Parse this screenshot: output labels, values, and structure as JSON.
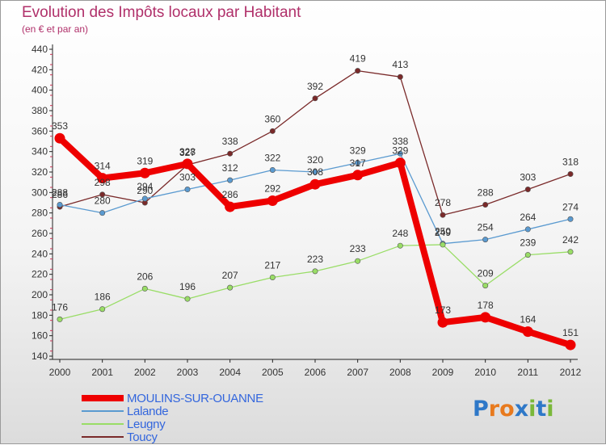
{
  "title": "Evolution des Impôts locaux par Habitant",
  "subtitle": "(en € et par an)",
  "logo": {
    "letters": [
      "P",
      "r",
      "o",
      "x",
      "i",
      "t",
      "i"
    ],
    "colors": [
      "#2e78c8",
      "#e87a1e",
      "#e87a1e",
      "#2e78c8",
      "#7ab83a",
      "#2e78c8",
      "#7ab83a"
    ]
  },
  "chart_data": {
    "type": "line",
    "title": "Evolution des Impôts locaux par Habitant",
    "ylabel": "(en € et par an)",
    "xlabel": "",
    "x": [
      "2000",
      "2001",
      "2002",
      "2003",
      "2004",
      "2005",
      "2006",
      "2007",
      "2008",
      "2009",
      "2010",
      "2011",
      "2012"
    ],
    "ylim": [
      140,
      440
    ],
    "yticks": [
      140,
      160,
      180,
      200,
      220,
      240,
      260,
      280,
      300,
      320,
      340,
      360,
      380,
      400,
      420,
      440
    ],
    "grid": false,
    "legend": "bottom-left",
    "series": [
      {
        "name": "Toucy",
        "color": "#7a2a2a",
        "width": "thin",
        "values": [
          286,
          298,
          290,
          327,
          338,
          360,
          392,
          419,
          413,
          278,
          288,
          303,
          318
        ]
      },
      {
        "name": "Lalande",
        "color": "#5a9ad0",
        "width": "thin",
        "values": [
          288,
          280,
          294,
          303,
          312,
          322,
          320,
          329,
          338,
          250,
          254,
          264,
          274
        ]
      },
      {
        "name": "Leugny",
        "color": "#99dd66",
        "width": "thin",
        "values": [
          176,
          186,
          206,
          196,
          207,
          217,
          223,
          233,
          248,
          249,
          209,
          239,
          242
        ]
      },
      {
        "name": "MOULINS-SUR-OUANNE",
        "color": "#ee0000",
        "width": "thick",
        "values": [
          353,
          314,
          319,
          328,
          286,
          292,
          308,
          317,
          329,
          173,
          178,
          164,
          151
        ]
      }
    ],
    "legend_order": [
      "MOULINS-SUR-OUANNE",
      "Lalande",
      "Leugny",
      "Toucy"
    ]
  }
}
